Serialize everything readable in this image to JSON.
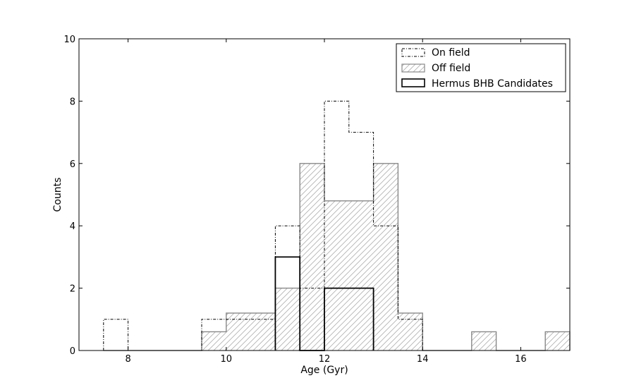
{
  "chart_data": {
    "type": "histogram",
    "xlabel": "Age (Gyr)",
    "ylabel": "Counts",
    "xlim": [
      7.0,
      17.0
    ],
    "ylim": [
      0,
      10
    ],
    "xticks": [
      8,
      10,
      12,
      14,
      16
    ],
    "yticks": [
      0,
      2,
      4,
      6,
      8,
      10
    ],
    "grid": false,
    "legend_position": "top-right",
    "series": [
      {
        "name": "On field",
        "style": "dashdot-step",
        "color": "#000000",
        "bin_edges": [
          7.5,
          8.0,
          8.5,
          9.0,
          9.5,
          10.0,
          10.5,
          11.0,
          11.5,
          12.0,
          12.5,
          13.0,
          13.5,
          14.0,
          14.5,
          15.0,
          15.5,
          16.0,
          16.5,
          17.0
        ],
        "counts": [
          1,
          0,
          0,
          0,
          1,
          1,
          1,
          4,
          2,
          8,
          7,
          4,
          1,
          0,
          0,
          0,
          0,
          0,
          0
        ]
      },
      {
        "name": "Off field",
        "style": "hatched-step",
        "color": "#888888",
        "bin_edges": [
          7.5,
          8.0,
          8.5,
          9.0,
          9.5,
          10.0,
          10.5,
          11.0,
          11.5,
          12.0,
          12.5,
          13.0,
          13.5,
          14.0,
          14.5,
          15.0,
          15.5,
          16.0,
          16.5,
          17.0
        ],
        "counts": [
          0,
          0,
          0,
          0,
          0.6,
          1.2,
          1.2,
          2,
          6,
          4.8,
          4.8,
          6,
          1.2,
          0,
          0,
          0.6,
          0,
          0,
          0.6
        ]
      },
      {
        "name": "Hermus BHB Candidates",
        "style": "solid-step",
        "color": "#000000",
        "bin_edges": [
          11.0,
          11.5,
          12.0,
          12.5,
          13.0
        ],
        "counts": [
          3,
          0,
          2,
          2
        ]
      }
    ]
  }
}
